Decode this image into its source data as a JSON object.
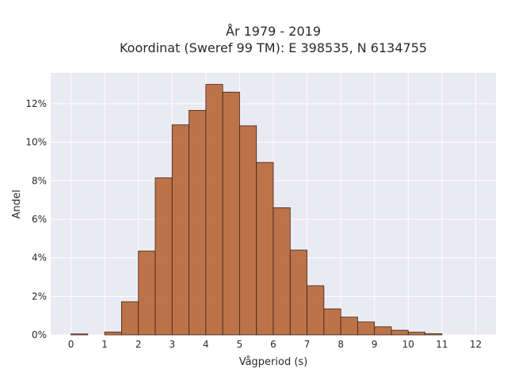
{
  "chart_data": {
    "type": "bar",
    "title": "År 1979 - 2019",
    "subtitle": "Koordinat (Sweref 99 TM): E 398535, N 6134755",
    "xlabel": "Vågperiod (s)",
    "ylabel": "Andel",
    "bin_width": 0.5,
    "bin_starts": [
      0.0,
      0.5,
      1.0,
      1.5,
      2.0,
      2.5,
      3.0,
      3.5,
      4.0,
      4.5,
      5.0,
      5.5,
      6.0,
      6.5,
      7.0,
      7.5,
      8.0,
      8.5,
      9.0,
      9.5,
      10.0,
      10.5,
      11.0,
      11.5
    ],
    "values": [
      0.05,
      0.0,
      0.15,
      1.72,
      4.35,
      8.15,
      10.9,
      11.65,
      13.0,
      12.6,
      10.85,
      8.95,
      6.6,
      4.4,
      2.55,
      1.35,
      0.92,
      0.67,
      0.42,
      0.24,
      0.14,
      0.06,
      0.0,
      0.0
    ],
    "value_unit": "%",
    "xlim": [
      -0.6,
      12.6
    ],
    "ylim": [
      0,
      13.6
    ],
    "x_ticks": [
      "0",
      "1",
      "2",
      "3",
      "4",
      "5",
      "6",
      "7",
      "8",
      "9",
      "10",
      "11",
      "12"
    ],
    "y_ticks": [
      "0%",
      "2%",
      "4%",
      "6%",
      "8%",
      "10%",
      "12%"
    ],
    "grid": true,
    "colors": {
      "bar_fill": "#b8683a",
      "bar_edge": "#3a2418",
      "plot_background": "#eaeaf2",
      "grid": "#ffffff"
    }
  }
}
